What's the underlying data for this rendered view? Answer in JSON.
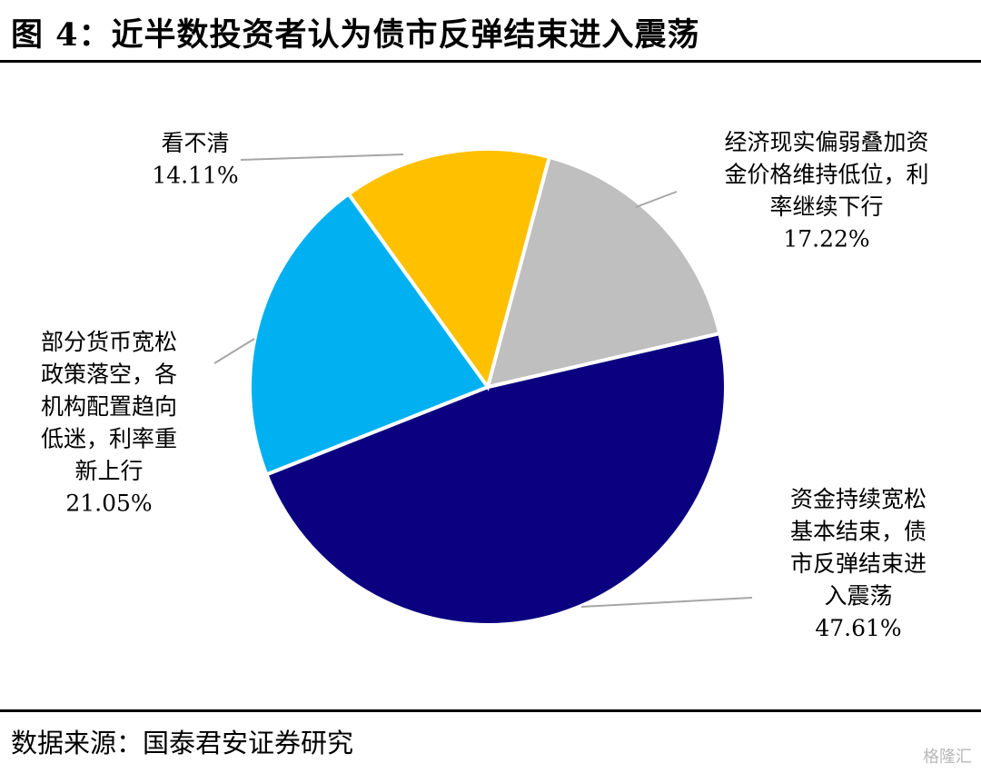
{
  "title": "图 4：近半数投资者认为债市反弹结束进入震荡",
  "source": "数据来源：国泰君安证券研究",
  "watermark": "格隆汇",
  "chart_data": {
    "type": "pie",
    "title": "图 4：近半数投资者认为债市反弹结束进入震荡",
    "unit": "%",
    "slices": [
      {
        "name": "资金持续宽松基本结束，债市反弹结束进入震荡",
        "label_lines": [
          "资金持续宽松",
          "基本结束，债",
          "市反弹结束进",
          "入震荡"
        ],
        "value": 47.61,
        "value_label": "47.61%",
        "color": "#0b0080"
      },
      {
        "name": "部分货币宽松政策落空，各机构配置趋向低迷，利率重新上行",
        "label_lines": [
          "部分货币宽松",
          "政策落空，各",
          "机构配置趋向",
          "低迷，利率重",
          "新上行"
        ],
        "value": 21.05,
        "value_label": "21.05%",
        "color": "#00b0f0"
      },
      {
        "name": "看不清",
        "label_lines": [
          "看不清"
        ],
        "value": 14.11,
        "value_label": "14.11%",
        "color": "#ffc000"
      },
      {
        "name": "经济现实偏弱叠加资金价格维持低位，利率继续下行",
        "label_lines": [
          "经济现实偏弱叠加资",
          "金价格维持低位，利",
          "率继续下行"
        ],
        "value": 17.22,
        "value_label": "17.22%",
        "color": "#bfbfbf"
      }
    ]
  }
}
